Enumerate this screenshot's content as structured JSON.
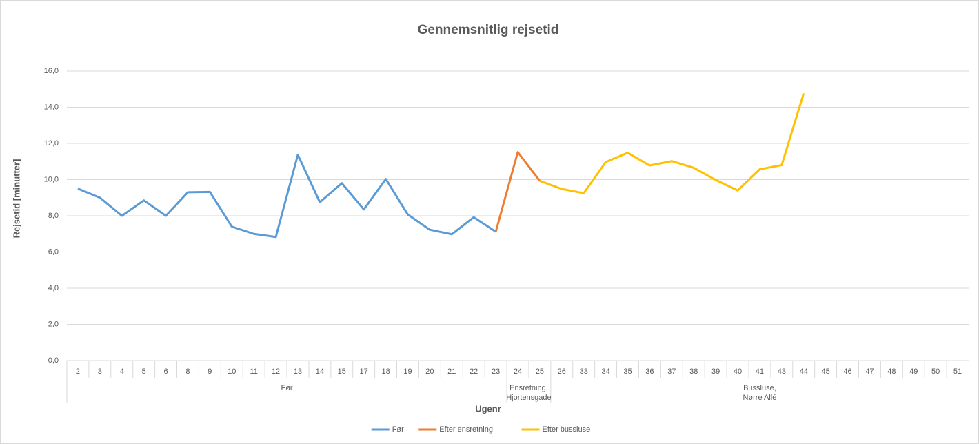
{
  "chart_data": {
    "type": "line",
    "title": "Gennemsnitlig rejsetid",
    "x_label": "Ugenr",
    "y_label": "Rejsetid [minutter]",
    "category_groups": [
      {
        "name": [
          "Før"
        ],
        "categories": [
          "2",
          "3",
          "4",
          "5",
          "6",
          "8",
          "9",
          "10",
          "11",
          "12",
          "13",
          "14",
          "15",
          "17",
          "18",
          "19",
          "20",
          "21",
          "22",
          "23"
        ]
      },
      {
        "name": [
          "Ensretning,",
          "Hjortensgade"
        ],
        "categories": [
          "24",
          "25"
        ]
      },
      {
        "name": [
          "Bussluse,",
          "Nørre Allé"
        ],
        "categories": [
          "26",
          "33",
          "34",
          "35",
          "36",
          "37",
          "38",
          "39",
          "40",
          "41",
          "43",
          "44",
          "45",
          "46",
          "47",
          "48",
          "49",
          "50",
          "51"
        ]
      }
    ],
    "ylim": [
      0,
      16
    ],
    "yticks": [
      {
        "value": 0,
        "label": "0,0"
      },
      {
        "value": 2,
        "label": "2,0"
      },
      {
        "value": 4,
        "label": "4,0"
      },
      {
        "value": 6,
        "label": "6,0"
      },
      {
        "value": 8,
        "label": "8,0"
      },
      {
        "value": 10,
        "label": "10,0"
      },
      {
        "value": 12,
        "label": "12,0"
      },
      {
        "value": 14,
        "label": "14,0"
      },
      {
        "value": 16,
        "label": "16,0"
      }
    ],
    "grid": true,
    "legend": "bottom",
    "series": [
      {
        "name": "Før",
        "color": "#5b9bd5",
        "values": [
          9.5,
          9.0,
          8.0,
          8.85,
          8.0,
          9.3,
          9.32,
          7.4,
          7.0,
          6.83,
          11.37,
          8.75,
          9.8,
          8.35,
          10.03,
          8.07,
          7.23,
          6.98,
          7.92,
          7.12,
          null,
          null,
          null,
          null,
          null,
          null,
          null,
          null,
          null,
          null,
          null,
          null,
          null,
          null,
          null,
          null,
          null,
          null,
          null,
          null,
          null
        ]
      },
      {
        "name": "Efter ensretning",
        "color": "#ed7d31",
        "values": [
          null,
          null,
          null,
          null,
          null,
          null,
          null,
          null,
          null,
          null,
          null,
          null,
          null,
          null,
          null,
          null,
          null,
          null,
          null,
          7.12,
          11.52,
          9.93,
          null,
          null,
          null,
          null,
          null,
          null,
          null,
          null,
          null,
          null,
          null,
          null,
          null,
          null,
          null,
          null,
          null,
          null,
          null
        ]
      },
      {
        "name": "Efter bussluse",
        "color": "#ffc000",
        "values": [
          null,
          null,
          null,
          null,
          null,
          null,
          null,
          null,
          null,
          null,
          null,
          null,
          null,
          null,
          null,
          null,
          null,
          null,
          null,
          null,
          null,
          9.93,
          9.48,
          9.25,
          10.97,
          11.48,
          10.78,
          11.02,
          10.65,
          9.98,
          9.4,
          10.57,
          10.8,
          14.77,
          null,
          null,
          null,
          null,
          null,
          null,
          null
        ]
      }
    ]
  }
}
